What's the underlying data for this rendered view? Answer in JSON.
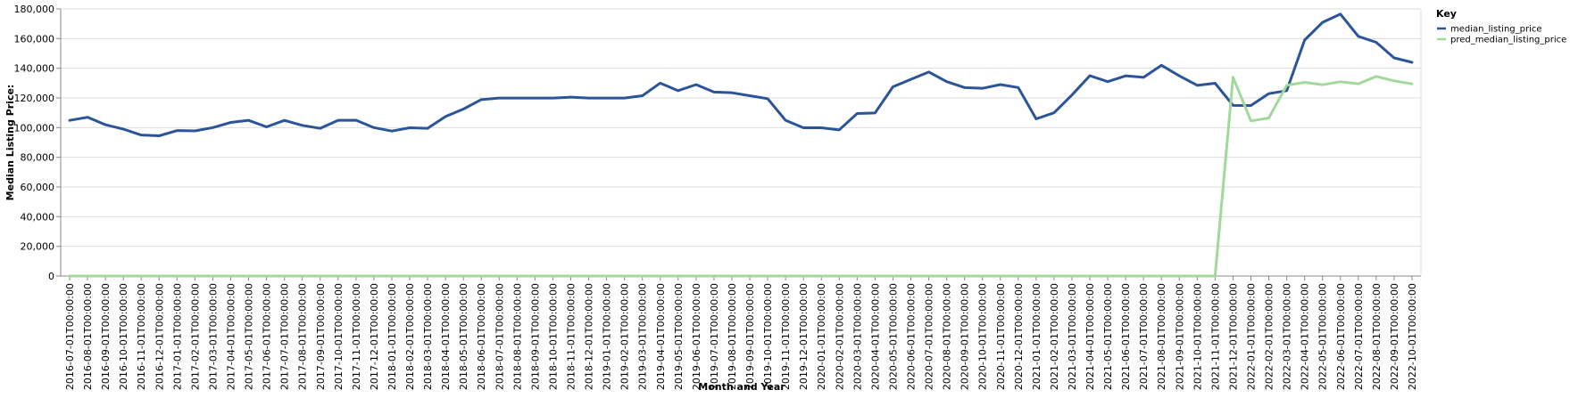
{
  "chart_data": {
    "type": "line",
    "xlabel": "Month and Year",
    "ylabel": "Median Listing Price:",
    "ylim": [
      0,
      180000
    ],
    "y_ticks": [
      0,
      20000,
      40000,
      60000,
      80000,
      100000,
      120000,
      140000,
      160000,
      180000
    ],
    "y_tick_labels": [
      "0",
      "20,000",
      "40,000",
      "60,000",
      "80,000",
      "100,000",
      "120,000",
      "140,000",
      "160,000",
      "180,000"
    ],
    "grid": true,
    "legend": {
      "title": "Key",
      "placement": "right"
    },
    "x": [
      "2016-07-01T00:00:00",
      "2016-08-01T00:00:00",
      "2016-09-01T00:00:00",
      "2016-10-01T00:00:00",
      "2016-11-01T00:00:00",
      "2016-12-01T00:00:00",
      "2017-01-01T00:00:00",
      "2017-02-01T00:00:00",
      "2017-03-01T00:00:00",
      "2017-04-01T00:00:00",
      "2017-05-01T00:00:00",
      "2017-06-01T00:00:00",
      "2017-07-01T00:00:00",
      "2017-08-01T00:00:00",
      "2017-09-01T00:00:00",
      "2017-10-01T00:00:00",
      "2017-11-01T00:00:00",
      "2017-12-01T00:00:00",
      "2018-01-01T00:00:00",
      "2018-02-01T00:00:00",
      "2018-03-01T00:00:00",
      "2018-04-01T00:00:00",
      "2018-05-01T00:00:00",
      "2018-06-01T00:00:00",
      "2018-07-01T00:00:00",
      "2018-08-01T00:00:00",
      "2018-09-01T00:00:00",
      "2018-10-01T00:00:00",
      "2018-11-01T00:00:00",
      "2018-12-01T00:00:00",
      "2019-01-01T00:00:00",
      "2019-02-01T00:00:00",
      "2019-03-01T00:00:00",
      "2019-04-01T00:00:00",
      "2019-05-01T00:00:00",
      "2019-06-01T00:00:00",
      "2019-07-01T00:00:00",
      "2019-08-01T00:00:00",
      "2019-09-01T00:00:00",
      "2019-10-01T00:00:00",
      "2019-11-01T00:00:00",
      "2019-12-01T00:00:00",
      "2020-01-01T00:00:00",
      "2020-02-01T00:00:00",
      "2020-03-01T00:00:00",
      "2020-04-01T00:00:00",
      "2020-05-01T00:00:00",
      "2020-06-01T00:00:00",
      "2020-07-01T00:00:00",
      "2020-08-01T00:00:00",
      "2020-09-01T00:00:00",
      "2020-10-01T00:00:00",
      "2020-11-01T00:00:00",
      "2020-12-01T00:00:00",
      "2021-01-01T00:00:00",
      "2021-02-01T00:00:00",
      "2021-03-01T00:00:00",
      "2021-04-01T00:00:00",
      "2021-05-01T00:00:00",
      "2021-06-01T00:00:00",
      "2021-07-01T00:00:00",
      "2021-08-01T00:00:00",
      "2021-09-01T00:00:00",
      "2021-10-01T00:00:00",
      "2021-11-01T00:00:00",
      "2021-12-01T00:00:00",
      "2022-01-01T00:00:00",
      "2022-02-01T00:00:00",
      "2022-03-01T00:00:00",
      "2022-04-01T00:00:00",
      "2022-05-01T00:00:00",
      "2022-06-01T00:00:00",
      "2022-07-01T00:00:00",
      "2022-08-01T00:00:00",
      "2022-09-01T00:00:00",
      "2022-10-01T00:00:00"
    ],
    "series": [
      {
        "name": "median_listing_price",
        "color": "#2b5598",
        "values": [
          104900,
          107000,
          101950,
          99000,
          95000,
          94500,
          98000,
          97800,
          100000,
          103500,
          104900,
          100500,
          104900,
          101500,
          99500,
          104900,
          105000,
          100000,
          97700,
          99900,
          99500,
          107500,
          112500,
          118900,
          119900,
          119900,
          119900,
          119900,
          120500,
          119900,
          119900,
          119900,
          121500,
          130000,
          124900,
          129000,
          124000,
          123500,
          121500,
          119500,
          104900,
          99900,
          99900,
          98500,
          109500,
          109900,
          127500,
          132500,
          137500,
          131000,
          127000,
          126500,
          129000,
          127000,
          105900,
          110000,
          122000,
          135000,
          131000,
          134900,
          133900,
          142000,
          134900,
          128500,
          129900,
          115000,
          114900,
          122900,
          124900,
          159000,
          170900,
          176500,
          161500,
          157500,
          147000,
          144000
        ]
      },
      {
        "name": "pred_median_listing_price",
        "color": "#a1d99b",
        "values": [
          0,
          0,
          0,
          0,
          0,
          0,
          0,
          0,
          0,
          0,
          0,
          0,
          0,
          0,
          0,
          0,
          0,
          0,
          0,
          0,
          0,
          0,
          0,
          0,
          0,
          0,
          0,
          0,
          0,
          0,
          0,
          0,
          0,
          0,
          0,
          0,
          0,
          0,
          0,
          0,
          0,
          0,
          0,
          0,
          0,
          0,
          0,
          0,
          0,
          0,
          0,
          0,
          0,
          0,
          0,
          0,
          0,
          0,
          0,
          0,
          0,
          0,
          0,
          0,
          0,
          134000,
          104500,
          106500,
          128500,
          130500,
          128900,
          130900,
          129500,
          134500,
          131500,
          129500
        ]
      }
    ]
  }
}
